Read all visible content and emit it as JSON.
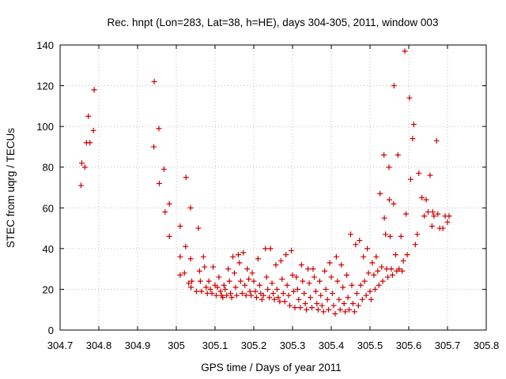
{
  "chart_data": {
    "type": "scatter",
    "title": "Rec. hnpt (Lon=283, Lat=38, h=HE), days 304-305, 2011, window 003",
    "xlabel": "GPS time / Days of year 2011",
    "ylabel": "STEC from uqrg / TECUs",
    "xlim": [
      304.7,
      305.8
    ],
    "ylim": [
      0,
      140
    ],
    "xticks": [
      "304.7",
      "304.8",
      "304.9",
      "305",
      "305.1",
      "305.2",
      "305.3",
      "305.4",
      "305.5",
      "305.6",
      "305.7",
      "305.8"
    ],
    "yticks": [
      "0",
      "20",
      "40",
      "60",
      "80",
      "100",
      "120",
      "140"
    ],
    "grid": true,
    "marker": "plus",
    "color": "#cc0000",
    "series": [
      {
        "points": [
          [
            304.754,
            71
          ],
          [
            304.756,
            82
          ],
          [
            304.764,
            80
          ],
          [
            304.768,
            92
          ],
          [
            304.773,
            105
          ],
          [
            304.777,
            92
          ],
          [
            304.786,
            98
          ],
          [
            304.788,
            118
          ],
          [
            304.943,
            122
          ],
          [
            304.942,
            90
          ],
          [
            304.955,
            99
          ],
          [
            304.956,
            72
          ],
          [
            304.968,
            79
          ],
          [
            304.971,
            58
          ],
          [
            304.982,
            62
          ],
          [
            304.982,
            46
          ],
          [
            305.01,
            51
          ],
          [
            305.01,
            36
          ],
          [
            305.01,
            27
          ],
          [
            305.025,
            75
          ],
          [
            305.024,
            41
          ],
          [
            305.021,
            28
          ],
          [
            305.037,
            60
          ],
          [
            305.037,
            35
          ],
          [
            305.032,
            23
          ],
          [
            305.038,
            21
          ],
          [
            305.04,
            24
          ],
          [
            305.052,
            19
          ],
          [
            305.057,
            50
          ],
          [
            305.06,
            29
          ],
          [
            305.062,
            24
          ],
          [
            305.065,
            19
          ],
          [
            305.07,
            36
          ],
          [
            305.073,
            31
          ],
          [
            305.077,
            21
          ],
          [
            305.08,
            18
          ],
          [
            305.084,
            24
          ],
          [
            305.088,
            20
          ],
          [
            305.092,
            18
          ],
          [
            305.095,
            31
          ],
          [
            305.1,
            22
          ],
          [
            305.103,
            17
          ],
          [
            305.106,
            21
          ],
          [
            305.11,
            26
          ],
          [
            305.114,
            19
          ],
          [
            305.117,
            17
          ],
          [
            305.12,
            16
          ],
          [
            305.123,
            22
          ],
          [
            305.126,
            20
          ],
          [
            305.13,
            17
          ],
          [
            305.134,
            30
          ],
          [
            305.137,
            24
          ],
          [
            305.14,
            18
          ],
          [
            305.143,
            16
          ],
          [
            305.146,
            36
          ],
          [
            305.15,
            28
          ],
          [
            305.153,
            21
          ],
          [
            305.156,
            17
          ],
          [
            305.16,
            37
          ],
          [
            305.163,
            33
          ],
          [
            305.166,
            24
          ],
          [
            305.17,
            18
          ],
          [
            305.173,
            38
          ],
          [
            305.177,
            22
          ],
          [
            305.18,
            17
          ],
          [
            305.183,
            30
          ],
          [
            305.187,
            25
          ],
          [
            305.19,
            19
          ],
          [
            305.193,
            17
          ],
          [
            305.196,
            28
          ],
          [
            305.2,
            24
          ],
          [
            305.204,
            19
          ],
          [
            305.207,
            16
          ],
          [
            305.211,
            35
          ],
          [
            305.215,
            22
          ],
          [
            305.218,
            18
          ],
          [
            305.221,
            15
          ],
          [
            305.225,
            17
          ],
          [
            305.23,
            40
          ],
          [
            305.233,
            26
          ],
          [
            305.236,
            20
          ],
          [
            305.24,
            16
          ],
          [
            305.243,
            40
          ],
          [
            305.247,
            23
          ],
          [
            305.25,
            18
          ],
          [
            305.253,
            15
          ],
          [
            305.257,
            32
          ],
          [
            305.26,
            20
          ],
          [
            305.263,
            16
          ],
          [
            305.267,
            14
          ],
          [
            305.27,
            34
          ],
          [
            305.273,
            25
          ],
          [
            305.276,
            18
          ],
          [
            305.28,
            14
          ],
          [
            305.283,
            37
          ],
          [
            305.286,
            22
          ],
          [
            305.29,
            17
          ],
          [
            305.293,
            12
          ],
          [
            305.297,
            39
          ],
          [
            305.3,
            27
          ],
          [
            305.303,
            19
          ],
          [
            305.306,
            11
          ],
          [
            305.31,
            26
          ],
          [
            305.313,
            20
          ],
          [
            305.316,
            15
          ],
          [
            305.32,
            11
          ],
          [
            305.323,
            32
          ],
          [
            305.326,
            24
          ],
          [
            305.33,
            18
          ],
          [
            305.333,
            13
          ],
          [
            305.336,
            10
          ],
          [
            305.34,
            30
          ],
          [
            305.343,
            23
          ],
          [
            305.346,
            16
          ],
          [
            305.35,
            11
          ],
          [
            305.353,
            30
          ],
          [
            305.356,
            26
          ],
          [
            305.36,
            19
          ],
          [
            305.363,
            13
          ],
          [
            305.366,
            10
          ],
          [
            305.37,
            24
          ],
          [
            305.373,
            17
          ],
          [
            305.376,
            12
          ],
          [
            305.38,
            9
          ],
          [
            305.383,
            29
          ],
          [
            305.386,
            20
          ],
          [
            305.39,
            15
          ],
          [
            305.393,
            10
          ],
          [
            305.396,
            33
          ],
          [
            305.4,
            26
          ],
          [
            305.403,
            18
          ],
          [
            305.406,
            12
          ],
          [
            305.41,
            8
          ],
          [
            305.413,
            36
          ],
          [
            305.416,
            24
          ],
          [
            305.42,
            15
          ],
          [
            305.423,
            10
          ],
          [
            305.426,
            32
          ],
          [
            305.43,
            21
          ],
          [
            305.433,
            13
          ],
          [
            305.436,
            9
          ],
          [
            305.44,
            27
          ],
          [
            305.443,
            16
          ],
          [
            305.446,
            10
          ],
          [
            305.45,
            47
          ],
          [
            305.453,
            22
          ],
          [
            305.456,
            13
          ],
          [
            305.46,
            9
          ],
          [
            305.463,
            42
          ],
          [
            305.466,
            18
          ],
          [
            305.47,
            12
          ],
          [
            305.473,
            44
          ],
          [
            305.476,
            22
          ],
          [
            305.48,
            15
          ],
          [
            305.483,
            36
          ],
          [
            305.486,
            24
          ],
          [
            305.49,
            17
          ],
          [
            305.493,
            40
          ],
          [
            305.496,
            28
          ],
          [
            305.5,
            19
          ],
          [
            305.503,
            15
          ],
          [
            305.506,
            33
          ],
          [
            305.51,
            27
          ],
          [
            305.513,
            20
          ],
          [
            305.516,
            36
          ],
          [
            305.52,
            29
          ],
          [
            305.523,
            22
          ],
          [
            305.526,
            67
          ],
          [
            305.53,
            31
          ],
          [
            305.533,
            24
          ],
          [
            305.536,
            86
          ],
          [
            305.537,
            55
          ],
          [
            305.54,
            47
          ],
          [
            305.543,
            30
          ],
          [
            305.546,
            26
          ],
          [
            305.549,
            80
          ],
          [
            305.55,
            64
          ],
          [
            305.552,
            46
          ],
          [
            305.555,
            30
          ],
          [
            305.558,
            27
          ],
          [
            305.562,
            120
          ],
          [
            305.561,
            62
          ],
          [
            305.566,
            37
          ],
          [
            305.569,
            29
          ],
          [
            305.572,
            86
          ],
          [
            305.575,
            30
          ],
          [
            305.58,
            46
          ],
          [
            305.583,
            29
          ],
          [
            305.586,
            34
          ],
          [
            305.59,
            137
          ],
          [
            305.593,
            57
          ],
          [
            305.596,
            37
          ],
          [
            305.602,
            114
          ],
          [
            305.605,
            74
          ],
          [
            305.61,
            94
          ],
          [
            305.613,
            101
          ],
          [
            305.617,
            42
          ],
          [
            305.622,
            47
          ],
          [
            305.626,
            77
          ],
          [
            305.634,
            65
          ],
          [
            305.64,
            56
          ],
          [
            305.645,
            64
          ],
          [
            305.65,
            58
          ],
          [
            305.655,
            76
          ],
          [
            305.66,
            51
          ],
          [
            305.662,
            58
          ],
          [
            305.665,
            56
          ],
          [
            305.672,
            93
          ],
          [
            305.675,
            57
          ],
          [
            305.68,
            50
          ],
          [
            305.688,
            50
          ],
          [
            305.694,
            56
          ],
          [
            305.7,
            53
          ],
          [
            305.704,
            56
          ]
        ]
      }
    ]
  }
}
